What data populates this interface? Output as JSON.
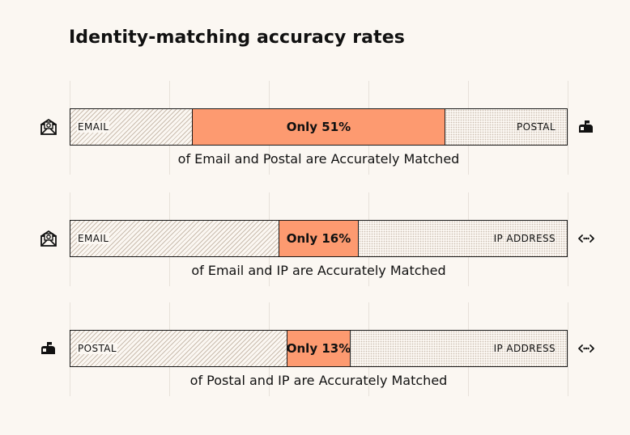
{
  "title": "Identity-matching accuracy rates",
  "icons": {
    "email": "envelope-icon",
    "postal": "mailbox-icon",
    "ip": "ip-arrows-icon"
  },
  "colors": {
    "highlight": "#fd9a70",
    "background": "#fbf7f2",
    "outline": "#1a1a1a"
  },
  "chart_data": {
    "type": "bar",
    "stacked": true,
    "orientation": "horizontal",
    "bars": [
      {
        "left_label": "EMAIL",
        "right_label": "POSTAL",
        "left_icon": "envelope-icon",
        "right_icon": "mailbox-icon",
        "values": [
          24.5,
          51,
          24.5
        ],
        "mid_label": "Only 51%",
        "caption": "of Email and Postal are Accurately Matched"
      },
      {
        "left_label": "EMAIL",
        "right_label": "IP ADDRESS",
        "left_icon": "envelope-icon",
        "right_icon": "ip-arrows-icon",
        "values": [
          42,
          16,
          42
        ],
        "mid_label": "Only 16%",
        "caption": "of Email and IP are Accurately Matched"
      },
      {
        "left_label": "POSTAL",
        "right_label": "IP ADDRESS",
        "left_icon": "mailbox-icon",
        "right_icon": "ip-arrows-icon",
        "values": [
          43.5,
          13,
          43.5
        ],
        "mid_label": "Only 13%",
        "caption": "of Postal and IP are Accurately Matched"
      }
    ],
    "xlim": [
      0,
      100
    ],
    "grid": true
  }
}
